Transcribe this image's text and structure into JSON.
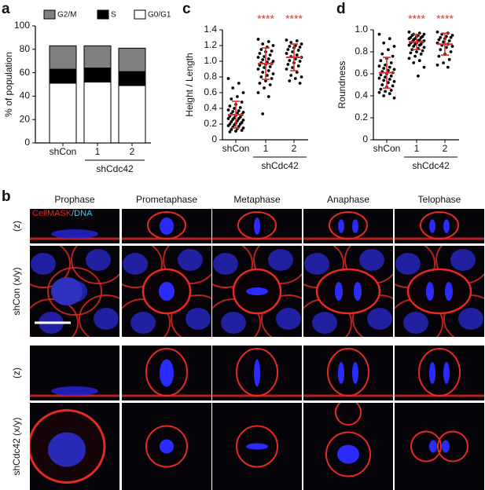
{
  "chart_data": [
    {
      "panel": "a",
      "type": "stacked_bar",
      "ylabel": "% of population",
      "categories": [
        "shCon",
        "1",
        "2"
      ],
      "group_label": "shCdc42",
      "ylim": [
        0,
        100
      ],
      "yticks": [
        0,
        20,
        40,
        60,
        80,
        100
      ],
      "series": [
        {
          "name": "G0/G1",
          "color": "#ffffff",
          "values": [
            51,
            52,
            49
          ]
        },
        {
          "name": "S",
          "color": "#000000",
          "values": [
            12,
            12,
            12
          ]
        },
        {
          "name": "G2/M",
          "color": "#808080",
          "values": [
            20,
            19,
            20
          ]
        }
      ]
    },
    {
      "panel": "c",
      "type": "dot",
      "ylabel": "Height / Length",
      "categories": [
        "shCon",
        "1",
        "2"
      ],
      "group_label": "shCdc42",
      "significance": [
        null,
        "****",
        "****"
      ],
      "color": "#000000",
      "summary_color": "#e0302a",
      "ylim": [
        0,
        1.4
      ],
      "yticks": [
        0,
        0.2,
        0.4,
        0.6,
        0.8,
        {
          "value": 1,
          "label": "1.0"
        },
        1.2,
        1.4
      ],
      "groups": [
        {
          "mean": 0.32,
          "sd": 0.17,
          "values": [
            0.78,
            0.72,
            0.66,
            0.6,
            0.55,
            0.52,
            0.48,
            0.45,
            0.43,
            0.41,
            0.4,
            0.38,
            0.37,
            0.36,
            0.35,
            0.34,
            0.33,
            0.32,
            0.31,
            0.3,
            0.29,
            0.28,
            0.27,
            0.27,
            0.26,
            0.25,
            0.24,
            0.23,
            0.22,
            0.21,
            0.2,
            0.2,
            0.19,
            0.18,
            0.17,
            0.16,
            0.15,
            0.14,
            0.13,
            0.12,
            0.11,
            0.1
          ]
        },
        {
          "mean": 0.97,
          "sd": 0.2,
          "values": [
            1.28,
            1.25,
            1.22,
            1.2,
            1.18,
            1.15,
            1.13,
            1.12,
            1.1,
            1.08,
            1.06,
            1.05,
            1.03,
            1.02,
            1.0,
            0.99,
            0.98,
            0.97,
            0.96,
            0.95,
            0.93,
            0.92,
            0.9,
            0.88,
            0.86,
            0.84,
            0.82,
            0.8,
            0.78,
            0.75,
            0.72,
            0.7,
            0.66,
            0.6,
            0.55,
            0.33
          ]
        },
        {
          "mean": 1.05,
          "sd": 0.17,
          "values": [
            1.27,
            1.26,
            1.24,
            1.22,
            1.2,
            1.19,
            1.18,
            1.17,
            1.15,
            1.14,
            1.12,
            1.1,
            1.08,
            1.06,
            1.05,
            1.03,
            1.01,
            1.0,
            0.98,
            0.96,
            0.94,
            0.92,
            0.9,
            0.86,
            0.82,
            0.8,
            0.78,
            0.75,
            0.72
          ]
        }
      ]
    },
    {
      "panel": "d",
      "type": "dot",
      "ylabel": "Roundness",
      "categories": [
        "shCon",
        "1",
        "2"
      ],
      "group_label": "shCdc42",
      "significance": [
        null,
        "****",
        "****"
      ],
      "color": "#000000",
      "summary_color": "#e0302a",
      "ylim": [
        0,
        1
      ],
      "yticks": [
        0,
        0.2,
        0.4,
        0.6,
        0.8,
        {
          "value": 1,
          "label": "1.0"
        }
      ],
      "groups": [
        {
          "mean": 0.61,
          "sd": 0.14,
          "values": [
            0.96,
            0.92,
            0.88,
            0.85,
            0.82,
            0.78,
            0.76,
            0.74,
            0.72,
            0.7,
            0.68,
            0.67,
            0.66,
            0.65,
            0.64,
            0.63,
            0.62,
            0.61,
            0.6,
            0.59,
            0.58,
            0.57,
            0.56,
            0.55,
            0.54,
            0.53,
            0.52,
            0.5,
            0.49,
            0.48,
            0.46,
            0.45,
            0.44,
            0.43,
            0.42,
            0.4,
            0.38
          ]
        },
        {
          "mean": 0.89,
          "sd": 0.07,
          "values": [
            0.98,
            0.97,
            0.96,
            0.96,
            0.95,
            0.95,
            0.94,
            0.94,
            0.93,
            0.93,
            0.92,
            0.92,
            0.91,
            0.91,
            0.9,
            0.9,
            0.89,
            0.89,
            0.88,
            0.88,
            0.87,
            0.87,
            0.86,
            0.86,
            0.85,
            0.84,
            0.83,
            0.82,
            0.81,
            0.8,
            0.79,
            0.78,
            0.76,
            0.74,
            0.72,
            0.7,
            0.66,
            0.58
          ]
        },
        {
          "mean": 0.87,
          "sd": 0.1,
          "values": [
            0.98,
            0.97,
            0.96,
            0.95,
            0.94,
            0.93,
            0.93,
            0.92,
            0.91,
            0.9,
            0.89,
            0.88,
            0.87,
            0.86,
            0.85,
            0.84,
            0.82,
            0.8,
            0.78,
            0.76,
            0.73,
            0.7,
            0.68,
            0.66
          ]
        }
      ]
    }
  ],
  "panel_b": {
    "label": "b",
    "stages": [
      "Prophase",
      "Prometaphase",
      "Metaphase",
      "Anaphase",
      "Telophase"
    ],
    "stain_label": {
      "membrane": "CellMASK",
      "dna": "/DNA"
    },
    "rows": [
      "(z)",
      "shCon (x/y)",
      "(z)",
      "shCdc42 (x/y)"
    ]
  }
}
